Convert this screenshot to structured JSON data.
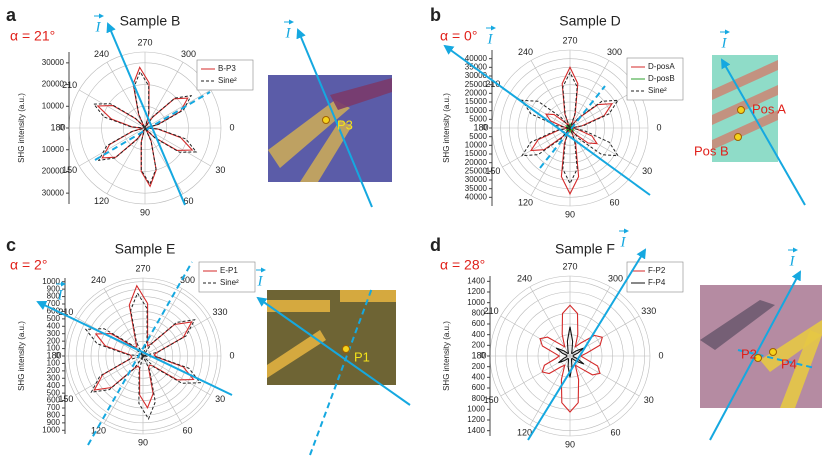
{
  "chart_data": [
    {
      "type": "polar",
      "label": "a",
      "title": "Sample B",
      "alpha": "α = 21°",
      "ylabel": "SHG intensity (a.u.)",
      "current_label": "I",
      "rlim": [
        0,
        35000
      ],
      "rticks": [
        0,
        10000,
        20000,
        30000
      ],
      "theta_ticks": [
        0,
        30,
        60,
        90,
        120,
        150,
        180,
        210,
        240,
        270,
        300,
        330
      ],
      "theta": [
        5,
        15,
        25,
        35,
        45,
        55,
        65,
        75,
        85,
        95,
        105,
        115,
        125,
        135,
        145,
        155,
        165,
        175,
        185,
        195,
        205,
        215,
        225,
        235,
        245,
        255,
        265,
        275,
        285,
        295,
        305,
        315,
        325,
        335,
        345,
        355
      ],
      "series": [
        {
          "name": "B-P3",
          "color": "#d42a2a",
          "dashed": false,
          "values": [
            6000,
            17000,
            24000,
            18000,
            6000,
            1000,
            6800,
            20000,
            27000,
            20000,
            6800,
            1000,
            6000,
            19000,
            24000,
            18000,
            6000,
            1000,
            6000,
            16000,
            24000,
            18000,
            6000,
            1000,
            7000,
            21000,
            28000,
            21000,
            7000,
            1000,
            6000,
            19000,
            24000,
            18000,
            6000,
            1000
          ]
        },
        {
          "name": "Sine²",
          "color": "#222222",
          "dashed": true,
          "values": [
            6500,
            19500,
            26000,
            19500,
            6500,
            0,
            6500,
            19500,
            26000,
            19500,
            6500,
            0,
            6500,
            19500,
            26000,
            19500,
            6500,
            0,
            6500,
            19500,
            26000,
            19500,
            6500,
            0,
            6500,
            19500,
            26000,
            19500,
            6500,
            0,
            6500,
            19500,
            26000,
            19500,
            6500,
            0
          ]
        }
      ],
      "photo_labels": [
        "P3"
      ]
    },
    {
      "type": "polar",
      "label": "b",
      "title": "Sample D",
      "alpha": "α = 0°",
      "ylabel": "SHG intensity (a.u.)",
      "current_label": "I",
      "rlim": [
        0,
        45000
      ],
      "rticks": [
        0,
        5000,
        10000,
        15000,
        20000,
        25000,
        30000,
        35000,
        40000
      ],
      "theta_ticks": [
        0,
        30,
        60,
        90,
        120,
        150,
        180,
        210,
        240,
        270,
        300,
        330
      ],
      "theta": [
        0,
        10,
        20,
        30,
        40,
        50,
        60,
        70,
        80,
        90,
        100,
        110,
        120,
        130,
        140,
        150,
        160,
        170,
        180,
        190,
        200,
        210,
        220,
        230,
        240,
        250,
        260,
        270,
        280,
        290,
        300,
        310,
        320,
        330,
        340,
        350
      ],
      "series": [
        {
          "name": "D-posA",
          "color": "#d42a2a",
          "dashed": false,
          "values": [
            1000,
            4500,
            13500,
            18000,
            13500,
            4500,
            1000,
            9500,
            28500,
            38000,
            28500,
            9500,
            1000,
            6500,
            19500,
            26000,
            19500,
            6500,
            1000,
            4000,
            12000,
            16000,
            12000,
            4000,
            1000,
            8800,
            26000,
            35000,
            26000,
            8800,
            1000,
            7000,
            21000,
            28000,
            21000,
            7000
          ]
        },
        {
          "name": "D-posB",
          "color": "#2ca02c",
          "dashed": false,
          "values": [
            200,
            800,
            1800,
            2400,
            1800,
            800,
            200,
            800,
            1800,
            2400,
            1800,
            800,
            200,
            800,
            1800,
            2400,
            1800,
            800,
            200,
            800,
            1800,
            2400,
            1800,
            800,
            200,
            800,
            1800,
            2400,
            1800,
            800,
            200,
            800,
            1800,
            2400,
            1800,
            800
          ]
        },
        {
          "name": "Sine²",
          "color": "#222222",
          "dashed": true,
          "values": [
            0,
            8000,
            24000,
            32000,
            24000,
            8000,
            0,
            8000,
            24000,
            32000,
            24000,
            8000,
            0,
            8000,
            24000,
            32000,
            24000,
            8000,
            0,
            8000,
            24000,
            32000,
            24000,
            8000,
            0,
            8000,
            24000,
            32000,
            24000,
            8000,
            0,
            8000,
            24000,
            32000,
            24000,
            8000
          ]
        }
      ],
      "photo_labels": [
        "Pos A",
        "Pos B"
      ]
    },
    {
      "type": "polar",
      "label": "c",
      "title": "Sample E",
      "alpha": "α = 2°",
      "ylabel": "SHG intensity (a.u.)",
      "current_label": "I",
      "rlim": [
        0,
        1050
      ],
      "rticks": [
        0,
        100,
        200,
        300,
        400,
        500,
        600,
        700,
        800,
        900,
        1000
      ],
      "theta_ticks": [
        0,
        30,
        60,
        90,
        120,
        150,
        180,
        210,
        240,
        270,
        300,
        330
      ],
      "theta": [
        5,
        15,
        25,
        35,
        45,
        55,
        65,
        75,
        85,
        95,
        105,
        115,
        125,
        135,
        145,
        155,
        165,
        175,
        185,
        195,
        205,
        215,
        225,
        235,
        245,
        255,
        265,
        275,
        285,
        295,
        305,
        315,
        325,
        335,
        345,
        355
      ],
      "series": [
        {
          "name": "E-P1",
          "color": "#d42a2a",
          "dashed": false,
          "values": [
            190,
            560,
            750,
            560,
            190,
            150,
            175,
            525,
            700,
            525,
            175,
            150,
            200,
            600,
            800,
            600,
            200,
            150,
            175,
            525,
            700,
            525,
            175,
            150,
            240,
            710,
            950,
            710,
            240,
            150,
            200,
            600,
            800,
            600,
            200,
            150
          ]
        },
        {
          "name": "Sine²",
          "color": "#222222",
          "dashed": true,
          "values": [
            210,
            640,
            850,
            640,
            210,
            0,
            210,
            640,
            850,
            640,
            210,
            0,
            210,
            640,
            850,
            640,
            210,
            0,
            210,
            640,
            850,
            640,
            210,
            0,
            210,
            640,
            850,
            640,
            210,
            0,
            210,
            640,
            850,
            640,
            210,
            0
          ]
        }
      ],
      "photo_labels": [
        "P1"
      ]
    },
    {
      "type": "polar",
      "label": "d",
      "title": "Sample F",
      "alpha": "α = 28°",
      "ylabel": "SHG intensity (a.u.)",
      "current_label": "I",
      "rlim": [
        0,
        1500
      ],
      "rticks": [
        0,
        200,
        400,
        600,
        800,
        1000,
        1200,
        1400
      ],
      "theta_ticks": [
        0,
        30,
        60,
        90,
        120,
        150,
        180,
        210,
        240,
        270,
        300,
        330
      ],
      "theta": [
        0,
        10,
        20,
        30,
        40,
        50,
        60,
        70,
        80,
        90,
        100,
        110,
        120,
        130,
        140,
        150,
        160,
        170,
        180,
        190,
        200,
        210,
        220,
        230,
        240,
        250,
        260,
        270,
        280,
        290,
        300,
        310,
        320,
        330,
        340,
        350
      ],
      "series": [
        {
          "name": "F-P2",
          "color": "#d42a2a",
          "dashed": false,
          "values": [
            200,
            290,
            550,
            650,
            550,
            290,
            200,
            470,
            890,
            1050,
            890,
            470,
            200,
            270,
            510,
            600,
            510,
            270,
            200,
            290,
            550,
            650,
            550,
            290,
            200,
            430,
            810,
            950,
            810,
            430,
            200,
            320,
            600,
            700,
            600,
            320
          ]
        },
        {
          "name": "F-P4",
          "color": "#111111",
          "dashed": false,
          "values": [
            60,
            60,
            150,
            300,
            150,
            60,
            60,
            80,
            200,
            400,
            200,
            80,
            60,
            60,
            130,
            250,
            130,
            60,
            60,
            60,
            150,
            300,
            150,
            60,
            60,
            110,
            280,
            550,
            280,
            110,
            60,
            60,
            150,
            300,
            150,
            60
          ]
        }
      ],
      "photo_labels": [
        "P2",
        "P4"
      ]
    }
  ]
}
